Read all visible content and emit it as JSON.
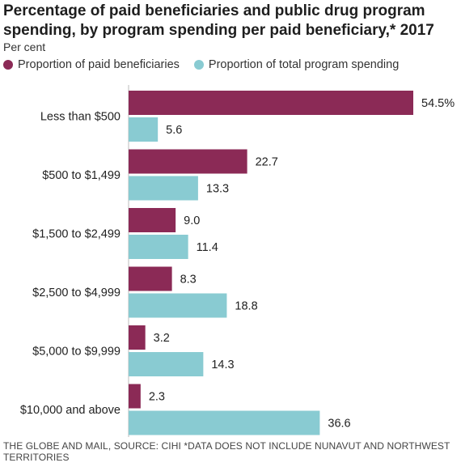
{
  "header": {
    "title": "Percentage of paid beneficiaries and public drug program spending, by program spending per paid beneficiary,* 2017",
    "unit": "Per cent"
  },
  "legend": {
    "items": [
      {
        "label": "Proportion of paid beneficiaries",
        "color": "#8b2a56"
      },
      {
        "label": "Proportion of total program spending",
        "color": "#89cbd2"
      }
    ]
  },
  "footer": {
    "source": "THE GLOBE AND MAIL, SOURCE: CIHI *DATA DOES NOT INCLUDE NUNAVUT AND NORTHWEST TERRITORIES"
  },
  "chart_data": {
    "type": "bar",
    "orientation": "horizontal",
    "title": "Percentage of paid beneficiaries and public drug program spending, by program spending per paid beneficiary,* 2017",
    "ylabel": "Per cent",
    "categories": [
      "Less than $500",
      "$500 to $1,499",
      "$1,500 to $2,499",
      "$2,500 to $4,999",
      "$5,000 to $9,999",
      "$10,000 and above"
    ],
    "series": [
      {
        "name": "Proportion of paid beneficiaries",
        "color": "#8b2a56",
        "values": [
          54.5,
          22.7,
          9.0,
          8.3,
          3.2,
          2.3
        ],
        "labels": [
          "54.5%",
          "22.7",
          "9.0",
          "8.3",
          "3.2",
          "2.3"
        ]
      },
      {
        "name": "Proportion of total program spending",
        "color": "#89cbd2",
        "values": [
          5.6,
          13.3,
          11.4,
          18.8,
          14.3,
          36.6
        ],
        "labels": [
          "5.6",
          "13.3",
          "11.4",
          "18.8",
          "14.3",
          "36.6"
        ]
      }
    ],
    "xlim": [
      0,
      54.5
    ],
    "grid": false,
    "legend": "top"
  }
}
